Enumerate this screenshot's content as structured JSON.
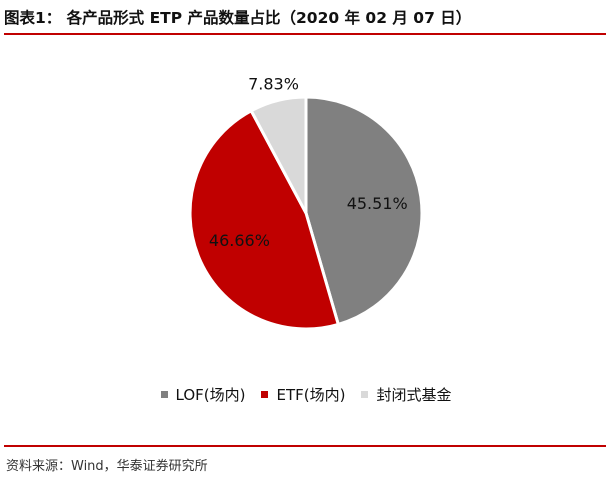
{
  "header": {
    "title": "图表1： 各产品形式 ETP 产品数量占比（2020 年 02 月 07 日）"
  },
  "footer": {
    "source": "资料来源：Wind，华泰证券研究所"
  },
  "chart_data": {
    "type": "pie",
    "title": "各产品形式 ETP 产品数量占比（2020 年 02 月 07 日）",
    "slices": [
      {
        "label": "LOF(场内)",
        "value": 45.51,
        "display": "45.51%",
        "color": "#808080"
      },
      {
        "label": "ETF(场内)",
        "value": 46.66,
        "display": "46.66%",
        "color": "#c00000"
      },
      {
        "label": "封闭式基金",
        "value": 7.83,
        "display": "7.83%",
        "color": "#d9d9d9"
      }
    ],
    "start_angle": "12 o'clock",
    "direction": "clockwise",
    "legend_position": "bottom"
  }
}
